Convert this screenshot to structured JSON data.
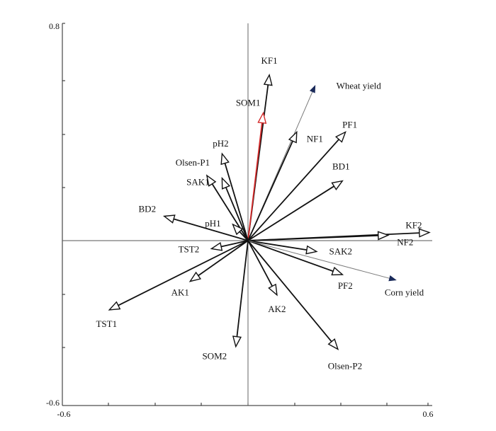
{
  "chart_data": {
    "type": "biplot",
    "title": "",
    "xlabel": "",
    "ylabel": "",
    "xlim": [
      -0.6,
      0.6
    ],
    "ylim": [
      -0.6,
      0.8
    ],
    "x_tick_labels": [
      "-0.6",
      "0.6"
    ],
    "y_tick_labels": [
      "0.8",
      "-0.6"
    ],
    "grid": false,
    "reference_lines": {
      "x": 0,
      "y": 0
    },
    "colors": {
      "default_arrow": "#111111",
      "highlight_arrow": "#d42a2a",
      "yield_arrow": "#7a7a7a",
      "yield_head": "#1a2a5a"
    },
    "vectors": [
      {
        "name": "KF1",
        "x": 0.07,
        "y": 0.61
      },
      {
        "name": "SOM1",
        "x": 0.05,
        "y": 0.47,
        "highlight": true
      },
      {
        "name": "Wheat yield",
        "x": 0.22,
        "y": 0.57,
        "style": "yield"
      },
      {
        "name": "PF1",
        "x": 0.32,
        "y": 0.4
      },
      {
        "name": "NF1",
        "x": 0.16,
        "y": 0.4
      },
      {
        "name": "BD1",
        "x": 0.31,
        "y": 0.22
      },
      {
        "name": "pH2",
        "x": -0.085,
        "y": 0.32
      },
      {
        "name": "Olsen-P1",
        "x": -0.135,
        "y": 0.24
      },
      {
        "name": "SAK1",
        "x": -0.085,
        "y": 0.23
      },
      {
        "name": "BD2",
        "x": -0.275,
        "y": 0.09
      },
      {
        "name": "pH1",
        "x": -0.05,
        "y": 0.06
      },
      {
        "name": "KF2",
        "x": 0.595,
        "y": 0.03
      },
      {
        "name": "NF2",
        "x": 0.46,
        "y": 0.02
      },
      {
        "name": "TST2",
        "x": -0.12,
        "y": -0.03
      },
      {
        "name": "SAK2",
        "x": 0.225,
        "y": -0.04
      },
      {
        "name": "PF2",
        "x": 0.31,
        "y": -0.125
      },
      {
        "name": "Corn yield",
        "x": 0.485,
        "y": -0.145,
        "style": "yield"
      },
      {
        "name": "AK1",
        "x": -0.19,
        "y": -0.15
      },
      {
        "name": "TST1",
        "x": -0.455,
        "y": -0.255
      },
      {
        "name": "AK2",
        "x": 0.095,
        "y": -0.2
      },
      {
        "name": "SOM2",
        "x": -0.04,
        "y": -0.39
      },
      {
        "name": "Olsen-P2",
        "x": 0.295,
        "y": -0.4
      }
    ]
  }
}
